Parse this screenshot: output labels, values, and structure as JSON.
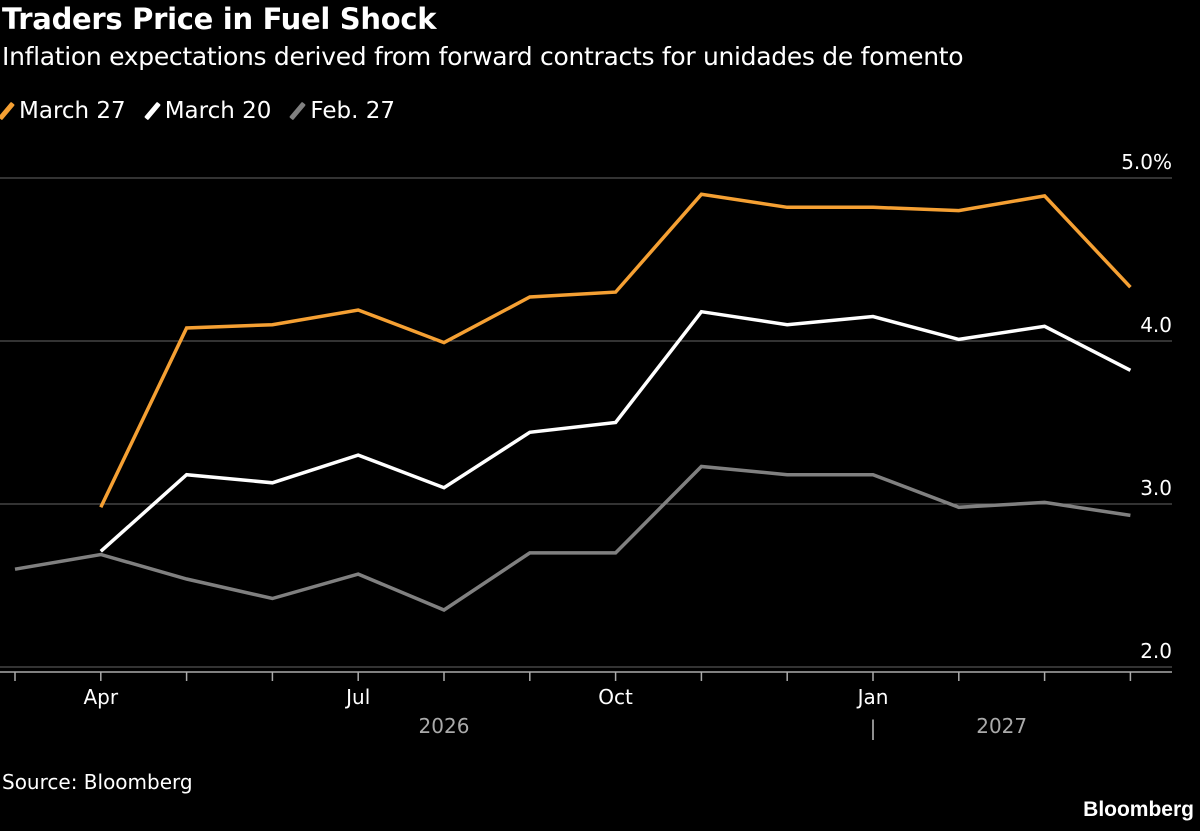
{
  "title": "Traders Price in Fuel Shock",
  "subtitle": "Inflation expectations derived from forward contracts for unidades de fomento",
  "source": "Source: Bloomberg",
  "brand": "Bloomberg",
  "chart_data": {
    "type": "line",
    "title": "Traders Price in Fuel Shock",
    "subtitle": "Inflation expectations derived from forward contracts for unidades de fomento",
    "x": [
      "2026-03",
      "2026-04",
      "2026-05",
      "2026-06",
      "2026-07",
      "2026-08",
      "2026-09",
      "2026-10",
      "2026-11",
      "2026-12",
      "2027-01",
      "2027-02",
      "2027-03",
      "2027-04"
    ],
    "series": [
      {
        "name": "March 27",
        "color": "#f5a033",
        "values": [
          null,
          2.98,
          4.08,
          4.1,
          4.19,
          3.99,
          4.27,
          4.3,
          4.9,
          4.82,
          4.82,
          4.8,
          4.89,
          4.33
        ]
      },
      {
        "name": "March 20",
        "color": "#ffffff",
        "values": [
          null,
          2.71,
          3.18,
          3.13,
          3.3,
          3.1,
          3.44,
          3.5,
          4.18,
          4.1,
          4.15,
          4.01,
          4.09,
          3.82
        ]
      },
      {
        "name": "Feb. 27",
        "color": "#808080",
        "values": [
          2.6,
          2.69,
          2.54,
          2.42,
          2.57,
          2.35,
          2.7,
          2.7,
          3.23,
          3.18,
          3.18,
          2.98,
          3.01,
          2.93
        ]
      }
    ],
    "ylim": [
      2.0,
      5.0
    ],
    "yticks": [
      {
        "value": 5.0,
        "label": "5.0%"
      },
      {
        "value": 4.0,
        "label": "4.0"
      },
      {
        "value": 3.0,
        "label": "3.0"
      },
      {
        "value": 2.0,
        "label": "2.0"
      }
    ],
    "xticks": [
      {
        "index": 1,
        "label": "Apr"
      },
      {
        "index": 4,
        "label": "Jul"
      },
      {
        "index": 7,
        "label": "Oct"
      },
      {
        "index": 10,
        "label": "Jan"
      }
    ],
    "year_labels": [
      {
        "center_index": 5,
        "label": "2026"
      },
      {
        "center_index": 11.5,
        "label": "2027"
      }
    ],
    "year_separator": "|",
    "grid": true,
    "legend": "top-left",
    "y_axis_side": "right"
  }
}
